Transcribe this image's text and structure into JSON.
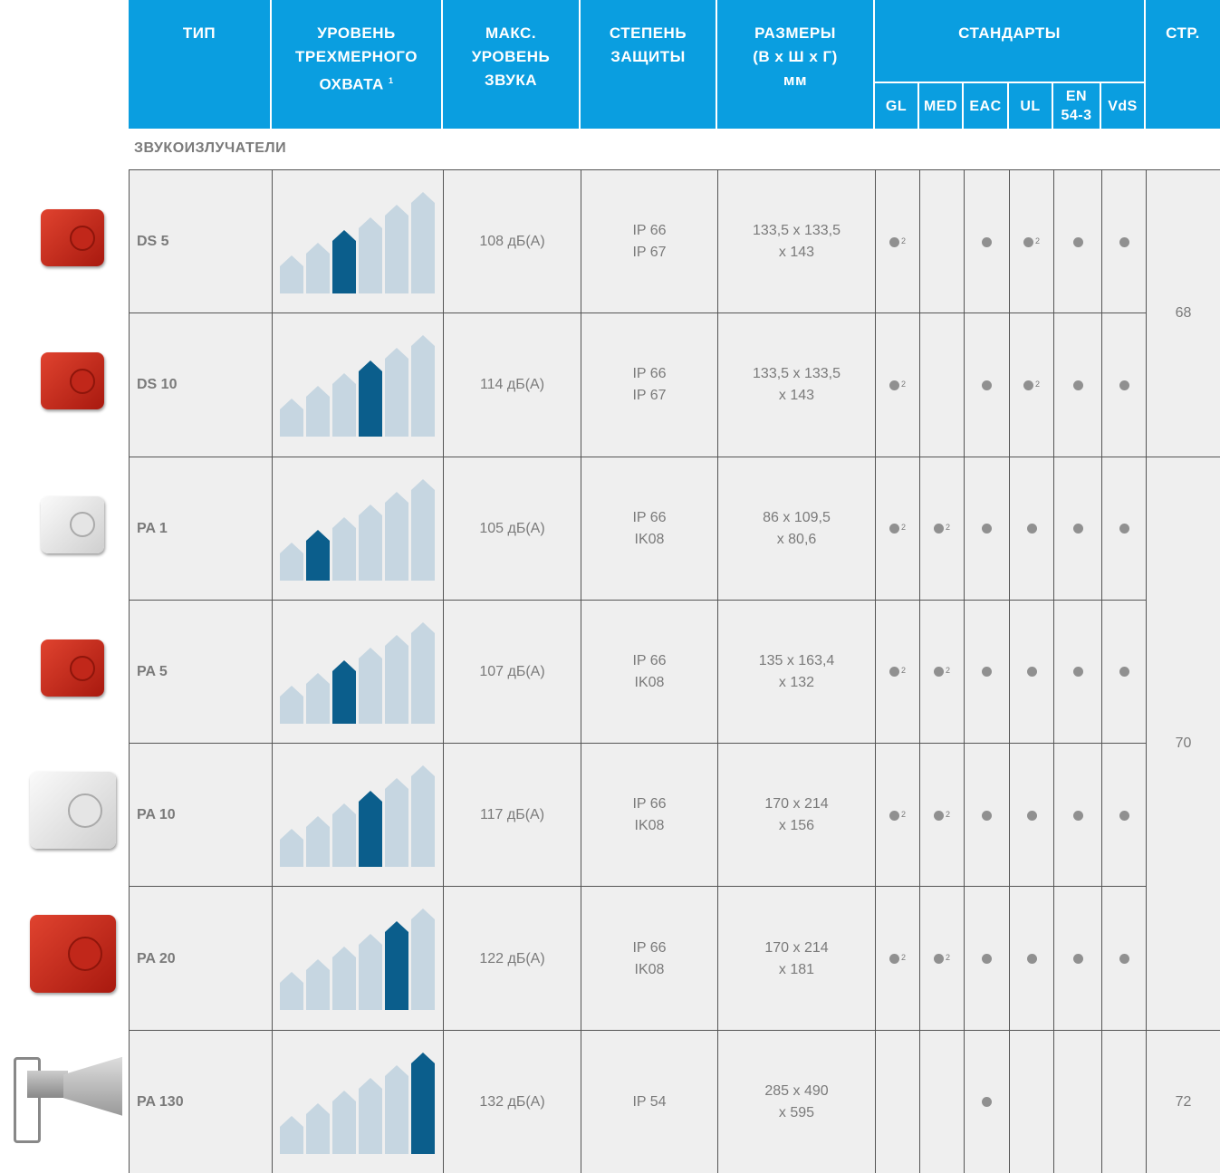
{
  "header": {
    "columns": [
      {
        "lines": [
          "ТИП"
        ]
      },
      {
        "lines": [
          "УРОВЕНЬ",
          "ТРЕХМЕРНОГО",
          "ОХВАТА"
        ],
        "note": "1"
      },
      {
        "lines": [
          "МАКС.",
          "УРОВЕНЬ",
          "ЗВУКА"
        ]
      },
      {
        "lines": [
          "СТЕПЕНЬ",
          "ЗАЩИТЫ"
        ]
      },
      {
        "lines": [
          "РАЗМЕРЫ",
          "(В x Ш x Г)",
          "мм"
        ]
      },
      {
        "lines": [
          "СТАНДАРТЫ"
        ]
      },
      {
        "lines": [
          "СТР."
        ]
      }
    ],
    "standards": [
      [
        "GL"
      ],
      [
        "MED"
      ],
      [
        "EAC"
      ],
      [
        "UL"
      ],
      [
        "EN",
        "54-3"
      ],
      [
        "VdS"
      ]
    ]
  },
  "section": "ЗВУКОИЗЛУЧАТЕЛИ",
  "rows": [
    {
      "type": "DS 5",
      "level": 3,
      "sound": "108 дБ(А)",
      "protection": [
        "IP 66",
        "IP 67"
      ],
      "size": [
        "133,5 x 133,5",
        "x 143"
      ],
      "standards": [
        "2",
        null,
        true,
        "2",
        true,
        true
      ],
      "page": "68"
    },
    {
      "type": "DS 10",
      "level": 4,
      "sound": "114 дБ(А)",
      "protection": [
        "IP 66",
        "IP 67"
      ],
      "size": [
        "133,5 x 133,5",
        "x 143"
      ],
      "standards": [
        "2",
        null,
        true,
        "2",
        true,
        true
      ],
      "page": null
    },
    {
      "type": "PA 1",
      "level": 2,
      "sound": "105 дБ(А)",
      "protection": [
        "IP 66",
        "IK08"
      ],
      "size": [
        "86 x 109,5",
        "x 80,6"
      ],
      "standards": [
        "2",
        "2",
        true,
        true,
        true,
        true
      ],
      "page": "70"
    },
    {
      "type": "PA 5",
      "level": 3,
      "sound": "107 дБ(А)",
      "protection": [
        "IP 66",
        "IK08"
      ],
      "size": [
        "135 x 163,4",
        "x 132"
      ],
      "standards": [
        "2",
        "2",
        true,
        true,
        true,
        true
      ],
      "page": null
    },
    {
      "type": "PA 10",
      "level": 4,
      "sound": "117 дБ(А)",
      "protection": [
        "IP 66",
        "IK08"
      ],
      "size": [
        "170 x 214",
        "x 156"
      ],
      "standards": [
        "2",
        "2",
        true,
        true,
        true,
        true
      ],
      "page": null
    },
    {
      "type": "PA 20",
      "level": 5,
      "sound": "122 дБ(А)",
      "protection": [
        "IP 66",
        "IK08"
      ],
      "size": [
        "170 x 214",
        "x 181"
      ],
      "standards": [
        "2",
        "2",
        true,
        true,
        true,
        true
      ],
      "page": null
    },
    {
      "type": "PA 130",
      "level": 6,
      "sound": "132 дБ(А)",
      "protection": [
        "IP 54"
      ],
      "size": [
        "285 x 490",
        "x 595"
      ],
      "standards": [
        null,
        null,
        true,
        null,
        null,
        null
      ],
      "page": "72"
    }
  ]
}
